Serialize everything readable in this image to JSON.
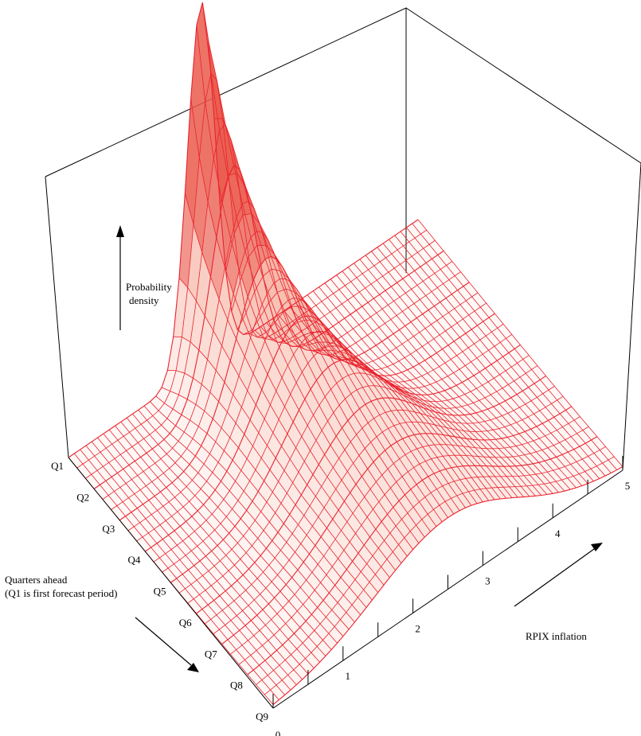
{
  "chart_data": {
    "type": "surface",
    "title": "",
    "zlabel": "Probability density",
    "zlabel_lines": [
      "Probability",
      "density"
    ],
    "xlabel": "RPIX inflation",
    "ylabel": "Quarters ahead (Q1 is first forecast period)",
    "ylabel_lines": [
      "Quarters ahead",
      "(Q1 is first forecast period)"
    ],
    "x_ticks": [
      "0",
      "1",
      "2",
      "3",
      "4",
      "5"
    ],
    "xlim": [
      0,
      5
    ],
    "quarters": [
      "Q1",
      "Q2",
      "Q3",
      "Q4",
      "Q5",
      "Q6",
      "Q7",
      "Q8",
      "Q9"
    ],
    "series": [
      {
        "quarter": "Q1",
        "center": 1.9,
        "sd": 0.2
      },
      {
        "quarter": "Q2",
        "center": 2.0,
        "sd": 0.32
      },
      {
        "quarter": "Q3",
        "center": 2.1,
        "sd": 0.45
      },
      {
        "quarter": "Q4",
        "center": 2.2,
        "sd": 0.57
      },
      {
        "quarter": "Q5",
        "center": 2.3,
        "sd": 0.67
      },
      {
        "quarter": "Q6",
        "center": 2.4,
        "sd": 0.77
      },
      {
        "quarter": "Q7",
        "center": 2.45,
        "sd": 0.86
      },
      {
        "quarter": "Q8",
        "center": 2.5,
        "sd": 0.94
      },
      {
        "quarter": "Q9",
        "center": 2.5,
        "sd": 1.02
      }
    ],
    "colors": {
      "line": "#e8232e",
      "fill": "#f4a38f",
      "peak": "#ea5a4c"
    },
    "grid": false,
    "legend": "none"
  }
}
